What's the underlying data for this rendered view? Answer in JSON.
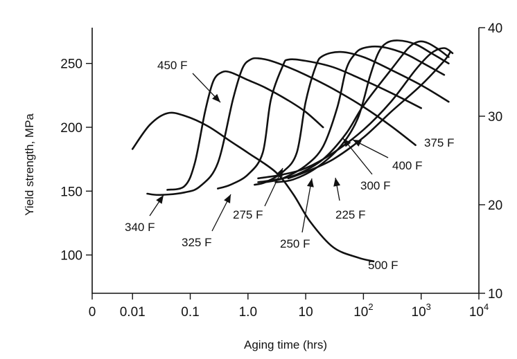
{
  "chart_data": {
    "type": "line",
    "title": "",
    "xlabel": "Aging time (hrs)",
    "ylabel": "Yield strength, MPa",
    "x_scale": "log",
    "xlim": [
      0.002,
      10000
    ],
    "ylim": [
      70,
      278
    ],
    "y2lim": [
      10,
      40
    ],
    "grid": false,
    "x_ticks": [
      {
        "value": 0.002,
        "label": "0"
      },
      {
        "value": 0.01,
        "label": "0.01"
      },
      {
        "value": 0.1,
        "label": "0.1"
      },
      {
        "value": 1,
        "label": "1.0"
      },
      {
        "value": 10,
        "label": "10"
      },
      {
        "value": 100,
        "base": "10",
        "exp": "2"
      },
      {
        "value": 1000,
        "base": "10",
        "exp": "3"
      },
      {
        "value": 10000,
        "base": "10",
        "exp": "4"
      }
    ],
    "y_ticks": [
      {
        "value": 100,
        "label": "100"
      },
      {
        "value": 150,
        "label": "150"
      },
      {
        "value": 200,
        "label": "200"
      },
      {
        "value": 250,
        "label": "250"
      }
    ],
    "y2_ticks": [
      {
        "value": 10,
        "label": "10"
      },
      {
        "value": 20,
        "label": "20"
      },
      {
        "value": 30,
        "label": "30"
      },
      {
        "value": 40,
        "label": "40"
      }
    ],
    "series": [
      {
        "name": "500 F",
        "x": [
          0.01,
          0.02,
          0.04,
          0.08,
          0.2,
          0.5,
          1,
          3,
          6,
          12,
          30,
          80,
          150
        ],
        "y": [
          183,
          202,
          211,
          209,
          201,
          189,
          180,
          165,
          148,
          126,
          106,
          98,
          95
        ]
      },
      {
        "name": "450 F",
        "x": [
          0.04,
          0.08,
          0.12,
          0.18,
          0.25,
          0.35,
          0.5,
          1,
          2,
          5,
          10,
          20
        ],
        "y": [
          151,
          154,
          172,
          212,
          236,
          243,
          243,
          237,
          231,
          221,
          212,
          200
        ]
      },
      {
        "name": "340 F",
        "x": [
          0.018,
          0.03,
          0.08,
          0.15,
          0.3,
          0.55,
          0.8,
          1.1,
          1.5,
          2.5,
          5,
          10,
          30,
          100,
          300,
          800
        ],
        "y": [
          148,
          147,
          149,
          154,
          172,
          222,
          246,
          253,
          254,
          252,
          247,
          241,
          230,
          216,
          201,
          186
        ]
      },
      {
        "name": "325 F",
        "x": [
          0.3,
          0.5,
          1,
          1.8,
          2.5,
          4,
          5,
          10,
          30,
          100,
          300,
          1000
        ],
        "y": [
          152,
          155,
          163,
          180,
          222,
          248,
          253,
          252,
          247,
          237,
          227,
          215
        ]
      },
      {
        "name": "275 F",
        "x": [
          1.3,
          2,
          4,
          7,
          10,
          15,
          20,
          40,
          100,
          300,
          1000,
          3000
        ],
        "y": [
          155,
          157,
          165,
          180,
          220,
          248,
          256,
          259,
          255,
          245,
          233,
          220
        ]
      },
      {
        "name": "250 F",
        "x": [
          2,
          4,
          10,
          20,
          35,
          50,
          70,
          100,
          200,
          500,
          1000,
          2500
        ],
        "y": [
          157,
          160,
          170,
          185,
          215,
          245,
          257,
          262,
          263,
          258,
          251,
          241
        ]
      },
      {
        "name": "225 F",
        "x": [
          3,
          6,
          15,
          40,
          80,
          130,
          180,
          250,
          400,
          800,
          1500,
          3000
        ],
        "y": [
          157,
          159,
          168,
          185,
          207,
          240,
          258,
          266,
          268,
          265,
          258,
          250
        ]
      },
      {
        "name": "300 F",
        "x": [
          1.5,
          3,
          7,
          20,
          50,
          100,
          300,
          600,
          900,
          1300,
          2000,
          3000
        ],
        "y": [
          157,
          159,
          163,
          175,
          195,
          217,
          245,
          262,
          267,
          266,
          261,
          255
        ]
      },
      {
        "name": "400 F",
        "x": [
          1.5,
          4,
          10,
          30,
          100,
          300,
          800,
          1500,
          2500,
          3500
        ],
        "y": [
          160,
          163,
          168,
          180,
          198,
          220,
          245,
          258,
          262,
          258
        ]
      },
      {
        "name": "375 F",
        "x": [
          5,
          10,
          30,
          100,
          300,
          1000,
          2500,
          3200
        ],
        "y": [
          160,
          165,
          175,
          192,
          212,
          233,
          252,
          259
        ]
      }
    ],
    "annotations": [
      {
        "text": "450 F"
      },
      {
        "text": "340 F"
      },
      {
        "text": "325 F"
      },
      {
        "text": "275 F"
      },
      {
        "text": "250 F"
      },
      {
        "text": "225 F"
      },
      {
        "text": "300 F"
      },
      {
        "text": "400 F"
      },
      {
        "text": "375 F"
      },
      {
        "text": "500 F"
      }
    ]
  }
}
